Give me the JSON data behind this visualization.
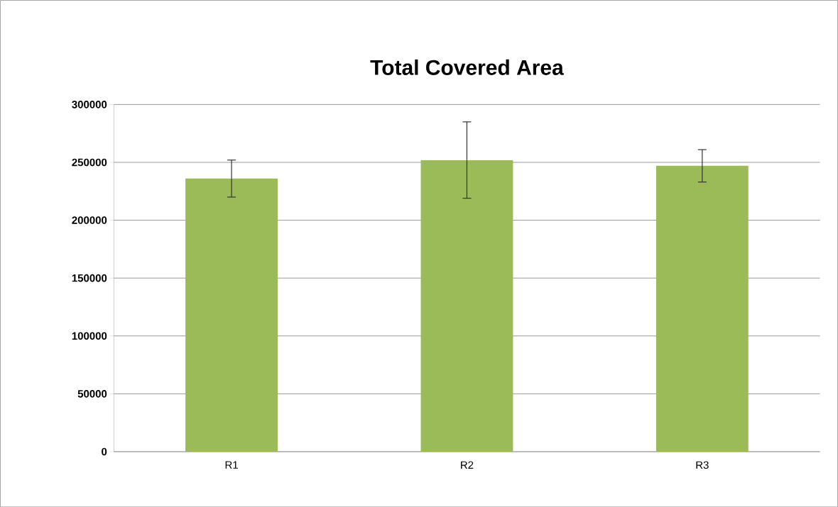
{
  "chart_data": {
    "type": "bar",
    "title": "Total Covered Area",
    "categories": [
      "R1",
      "R2",
      "R3"
    ],
    "values": [
      236000,
      252000,
      247000
    ],
    "errors": [
      16000,
      33000,
      14000
    ],
    "color": "#9bbb59",
    "ylim": [
      0,
      300000
    ],
    "yticks": [
      0,
      50000,
      100000,
      150000,
      200000,
      250000,
      300000
    ],
    "grid": "y"
  }
}
